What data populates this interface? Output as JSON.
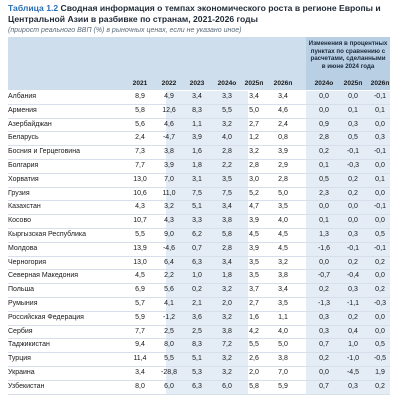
{
  "title": {
    "label": "Таблица 1.2",
    "text": "Сводная информация о темпах экономического роста в регионе Европы и Центральной Азии в разбивке по странам, 2021-2026 годы"
  },
  "subtitle": "(прирост реального ВВП (%) в рыночных ценах, если не указано иное)",
  "changes_header": "Изменения в процентных пунктах по сравнению с расчетами, сделанными в июне 2024 года",
  "columns": [
    "2021",
    "2022",
    "2023",
    "2024o",
    "2025п",
    "2026п",
    "2024o",
    "2025п",
    "2026п"
  ],
  "rows": [
    {
      "name": "Албания",
      "values": [
        "8,9",
        "4,9",
        "3,4",
        "3,3",
        "3,4",
        "3,4",
        "0,0",
        "0,0",
        "-0,1"
      ]
    },
    {
      "name": "Армения",
      "values": [
        "5,8",
        "12,6",
        "8,3",
        "5,5",
        "5,0",
        "4,6",
        "0,0",
        "0,1",
        "0,1"
      ]
    },
    {
      "name": "Азербайджан",
      "values": [
        "5,6",
        "4,6",
        "1,1",
        "3,2",
        "2,7",
        "2,4",
        "0,9",
        "0,3",
        "0,0"
      ]
    },
    {
      "name": "Беларусь",
      "values": [
        "2,4",
        "-4,7",
        "3,9",
        "4,0",
        "1,2",
        "0,8",
        "2,8",
        "0,5",
        "0,3"
      ]
    },
    {
      "name": "Босния и Герцеговина",
      "values": [
        "7,3",
        "3,8",
        "1,6",
        "2,8",
        "3,2",
        "3,9",
        "0,2",
        "-0,1",
        "-0,1"
      ]
    },
    {
      "name": "Болгария",
      "values": [
        "7,7",
        "3,9",
        "1,8",
        "2,2",
        "2,8",
        "2,9",
        "0,1",
        "-0,3",
        "0,0"
      ]
    },
    {
      "name": "Хорватия",
      "values": [
        "13,0",
        "7,0",
        "3,1",
        "3,5",
        "3,0",
        "2,8",
        "0,5",
        "0,2",
        "0,1"
      ]
    },
    {
      "name": "Грузия",
      "values": [
        "10,6",
        "11,0",
        "7,5",
        "7,5",
        "5,2",
        "5,0",
        "2,3",
        "0,2",
        "0,0"
      ]
    },
    {
      "name": "Казахстан",
      "values": [
        "4,3",
        "3,2",
        "5,1",
        "3,4",
        "4,7",
        "3,5",
        "0,0",
        "0,0",
        "-0,1"
      ]
    },
    {
      "name": "Косово",
      "values": [
        "10,7",
        "4,3",
        "3,3",
        "3,8",
        "3,9",
        "4,0",
        "0,1",
        "0,0",
        "0,0"
      ]
    },
    {
      "name": "Кыргызская Республика",
      "values": [
        "5,5",
        "9,0",
        "6,2",
        "5,8",
        "4,5",
        "4,5",
        "1,3",
        "0,3",
        "0,5"
      ]
    },
    {
      "name": "Молдова",
      "values": [
        "13,9",
        "-4,6",
        "0,7",
        "2,8",
        "3,9",
        "4,5",
        "-1,6",
        "-0,1",
        "-0,1"
      ]
    },
    {
      "name": "Черногория",
      "values": [
        "13,0",
        "6,4",
        "6,3",
        "3,4",
        "3,5",
        "3,2",
        "0,0",
        "0,2",
        "0,2"
      ]
    },
    {
      "name": "Северная Македония",
      "values": [
        "4,5",
        "2,2",
        "1,0",
        "1,8",
        "3,5",
        "3,8",
        "-0,7",
        "-0,4",
        "0,0"
      ]
    },
    {
      "name": "Польша",
      "values": [
        "6,9",
        "5,6",
        "0,2",
        "3,2",
        "3,7",
        "3,4",
        "0,2",
        "0,3",
        "0,2"
      ]
    },
    {
      "name": "Румыния",
      "values": [
        "5,7",
        "4,1",
        "2,1",
        "2,0",
        "2,7",
        "3,5",
        "-1,3",
        "-1,1",
        "-0,3"
      ]
    },
    {
      "name": "Российская Федерация",
      "values": [
        "5,9",
        "-1,2",
        "3,6",
        "3,2",
        "1,6",
        "1,1",
        "0,3",
        "0,2",
        "0,0"
      ]
    },
    {
      "name": "Сербия",
      "values": [
        "7,7",
        "2,5",
        "2,5",
        "3,8",
        "4,2",
        "4,0",
        "0,3",
        "0,4",
        "0,0"
      ]
    },
    {
      "name": "Таджикистан",
      "values": [
        "9,4",
        "8,0",
        "8,3",
        "7,2",
        "5,5",
        "5,0",
        "0,7",
        "1,0",
        "0,5"
      ]
    },
    {
      "name": "Турция",
      "values": [
        "11,4",
        "5,5",
        "5,1",
        "3,2",
        "2,6",
        "3,8",
        "0,2",
        "-1,0",
        "-0,5"
      ]
    },
    {
      "name": "Украина",
      "values": [
        "3,4",
        "-28,8",
        "5,3",
        "3,2",
        "2,0",
        "7,0",
        "0,0",
        "-4,5",
        "1,9"
      ]
    },
    {
      "name": "Узбекистан",
      "values": [
        "8,0",
        "6,0",
        "6,3",
        "6,0",
        "5,8",
        "5,9",
        "0,7",
        "0,3",
        "0,2"
      ]
    }
  ]
}
